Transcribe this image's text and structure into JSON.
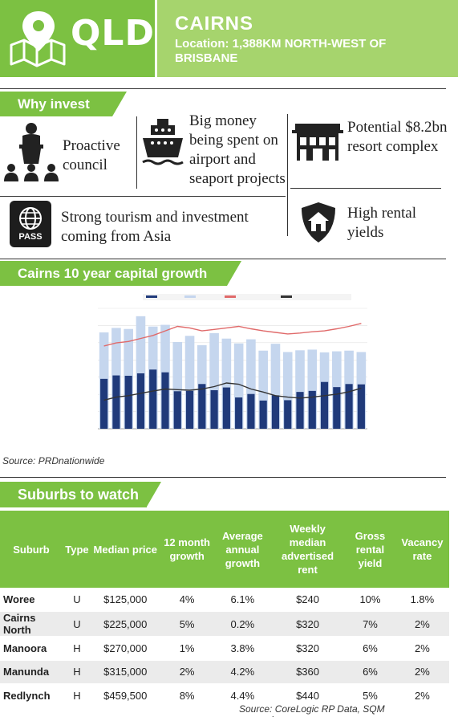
{
  "header": {
    "state": "QLD",
    "city": "CAIRNS",
    "location": "Location: 1,388KM NORTH-WEST OF BRISBANE",
    "color_primary": "#7cc142",
    "color_secondary": "#a6d46d",
    "icon": "map-pin-icon"
  },
  "why_invest": {
    "title": "Why invest",
    "items": [
      {
        "icon": "speaker-podium-icon",
        "text": "Proactive council"
      },
      {
        "icon": "cruise-ship-icon",
        "text": "Big money being spent on airport and seaport projects"
      },
      {
        "icon": "resort-building-icon",
        "text": "Potential $8.2bn resort complex"
      },
      {
        "icon": "passport-icon",
        "text": "Strong tourism and investment coming from Asia"
      },
      {
        "icon": "house-shield-icon",
        "text": "High rental yields"
      }
    ],
    "pass_label": "PASS"
  },
  "growth": {
    "title": "Cairns 10 year capital growth",
    "source": "Source: PRDnationwide"
  },
  "chart_data": {
    "type": "bar",
    "categories": [
      "",
      "",
      "",
      "",
      "",
      "",
      "",
      "",
      "",
      "",
      "",
      "",
      "",
      "",
      "",
      "",
      "",
      "",
      "",
      "",
      "",
      ""
    ],
    "series": [
      {
        "type": "bar",
        "axis": "left",
        "values": [
          1450,
          1550,
          1540,
          1610,
          1720,
          1640,
          1090,
          1100,
          1300,
          1120,
          1200,
          910,
          1010,
          820,
          970,
          830,
          1070,
          1100,
          1360,
          1210,
          1300,
          1290
        ]
      },
      {
        "type": "bar",
        "axis": "left",
        "values": [
          2800,
          2930,
          2900,
          3270,
          2970,
          3020,
          2520,
          2700,
          2430,
          2780,
          2620,
          2480,
          2600,
          2270,
          2470,
          2230,
          2280,
          2300,
          2220,
          2250,
          2270,
          2230
        ]
      },
      {
        "type": "line",
        "axis": "right",
        "values": [
          575,
          585,
          590,
          600,
          610,
          625,
          640,
          635,
          625,
          630,
          635,
          640,
          632,
          625,
          620,
          615,
          618,
          622,
          625,
          632,
          640,
          650
        ]
      },
      {
        "type": "line",
        "axis": "right",
        "values": [
          395,
          405,
          410,
          418,
          425,
          432,
          430,
          428,
          432,
          440,
          452,
          448,
          432,
          422,
          410,
          405,
          402,
          405,
          410,
          415,
          423,
          435
        ]
      }
    ],
    "ylim": [
      0,
      3500
    ],
    "y2lim": [
      300,
      700
    ],
    "colors": [
      "#203a7a",
      "#c5d6ee",
      "#e06a6a",
      "#333333"
    ]
  },
  "suburbs": {
    "title": "Suburbs to watch",
    "columns": [
      "Suburb",
      "Type",
      "Median price",
      "12 month growth",
      "Average annual growth",
      "Weekly median advertised rent",
      "Gross rental yield",
      "Vacancy rate"
    ],
    "rows": [
      [
        "Woree",
        "U",
        "$125,000",
        "4%",
        "6.1%",
        "$240",
        "10%",
        "1.8%"
      ],
      [
        "Cairns North",
        "U",
        "$225,000",
        "5%",
        "0.2%",
        "$320",
        "7%",
        "2%"
      ],
      [
        "Manoora",
        "H",
        "$270,000",
        "1%",
        "3.8%",
        "$320",
        "6%",
        "2%"
      ],
      [
        "Manunda",
        "H",
        "$315,000",
        "2%",
        "4.2%",
        "$360",
        "6%",
        "2%"
      ],
      [
        "Redlynch",
        "H",
        "$459,500",
        "8%",
        "4.4%",
        "$440",
        "5%",
        "2%"
      ]
    ],
    "source": "Source: CoreLogic RP Data, SQM research.com.au"
  }
}
